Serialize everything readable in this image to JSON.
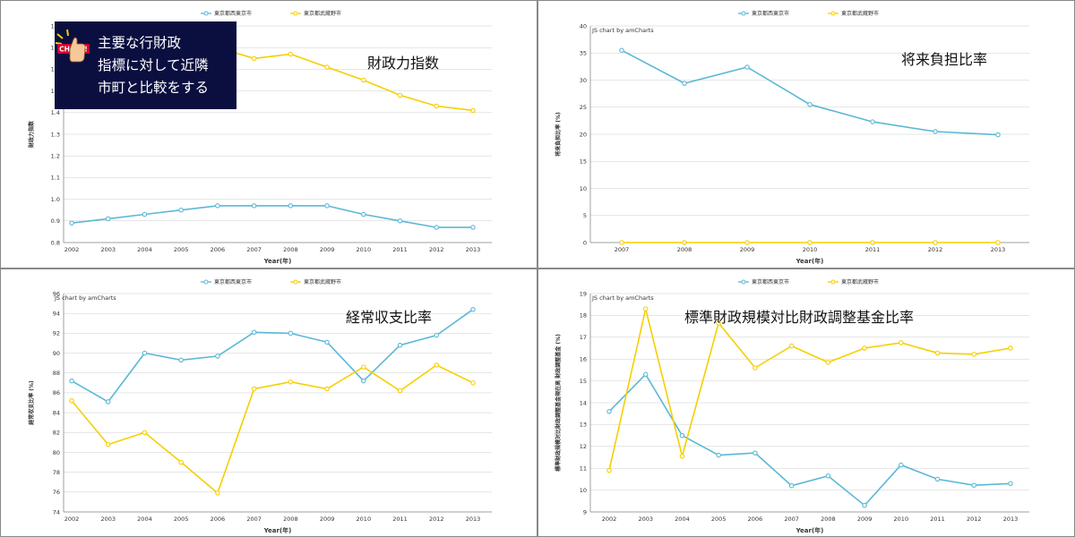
{
  "legend": {
    "series_a": "東京都西東京市",
    "series_b": "東京都武蔵野市"
  },
  "colors": {
    "series_a": "#5bb8d6",
    "series_b": "#f5cf00",
    "grid": "#cccccc",
    "axis": "#888888"
  },
  "callout": {
    "icon": "check-pointing-hand-icon",
    "badge_text": "CHECK!",
    "lines": [
      "主要な行財政",
      "指標に対して近隣",
      "市町と比較をする"
    ]
  },
  "chart_data": [
    {
      "type": "line",
      "title": "財政力指数",
      "credit": "",
      "xlabel": "Year(年)",
      "ylabel": "財政力指数",
      "x": [
        "2002",
        "2003",
        "2004",
        "2005",
        "2006",
        "2007",
        "2008",
        "2009",
        "2010",
        "2011",
        "2012",
        "2013"
      ],
      "yticks": [
        "0.8",
        "0.9",
        "1.0",
        "1.1",
        "1.2",
        "1.3",
        "1.4",
        "1.5",
        "1.6",
        "1.7",
        "1.8"
      ],
      "ylim": [
        0.8,
        1.8
      ],
      "series": [
        {
          "name": "東京都西東京市",
          "values": [
            0.89,
            0.91,
            0.93,
            0.95,
            0.97,
            0.97,
            0.97,
            0.97,
            0.93,
            0.9,
            0.87,
            0.87
          ]
        },
        {
          "name": "東京都武蔵野市",
          "values": [
            null,
            null,
            null,
            null,
            1.7,
            1.65,
            1.67,
            1.61,
            1.55,
            1.48,
            1.43,
            1.41
          ]
        }
      ]
    },
    {
      "type": "line",
      "title": "将来負担比率",
      "credit": "JS chart by amCharts",
      "xlabel": "Year(年)",
      "ylabel": "将来負担比率 (%)",
      "x": [
        "2007",
        "2008",
        "2009",
        "2010",
        "2011",
        "2012",
        "2013"
      ],
      "yticks": [
        "0",
        "5",
        "10",
        "15",
        "20",
        "25",
        "30",
        "35",
        "40"
      ],
      "ylim": [
        0,
        40
      ],
      "series": [
        {
          "name": "東京都西東京市",
          "values": [
            35.5,
            29.4,
            32.4,
            25.5,
            22.3,
            20.5,
            19.9
          ]
        },
        {
          "name": "東京都武蔵野市",
          "values": [
            0,
            0,
            0,
            0,
            0,
            0,
            0
          ]
        }
      ]
    },
    {
      "type": "line",
      "title": "経常収支比率",
      "credit": "JS chart by amCharts",
      "xlabel": "Year(年)",
      "ylabel": "経常収支比率 (%)",
      "x": [
        "2002",
        "2003",
        "2004",
        "2005",
        "2006",
        "2007",
        "2008",
        "2009",
        "2010",
        "2011",
        "2012",
        "2013"
      ],
      "yticks": [
        "74",
        "76",
        "78",
        "80",
        "82",
        "84",
        "86",
        "88",
        "90",
        "92",
        "94",
        "96"
      ],
      "ylim": [
        74,
        96
      ],
      "series": [
        {
          "name": "東京都西東京市",
          "values": [
            87.2,
            85.1,
            90.0,
            89.3,
            89.7,
            92.1,
            92.0,
            91.1,
            87.2,
            90.8,
            91.8,
            94.4
          ]
        },
        {
          "name": "東京都武蔵野市",
          "values": [
            85.2,
            80.8,
            82.0,
            79.0,
            75.9,
            86.4,
            87.1,
            86.4,
            88.6,
            86.2,
            88.8,
            87.0
          ]
        }
      ]
    },
    {
      "type": "line",
      "title": "標準財政規模対比財政調整基金比率",
      "credit": "JS chart by amCharts",
      "xlabel": "Year(年)",
      "ylabel": "標準財政規模対比財政調整基金現在高 財政調整基金 (%)",
      "x": [
        "2002",
        "2003",
        "2004",
        "2005",
        "2006",
        "2007",
        "2008",
        "2009",
        "2010",
        "2011",
        "2012",
        "2013"
      ],
      "yticks": [
        "9",
        "10",
        "11",
        "12",
        "13",
        "14",
        "15",
        "16",
        "17",
        "18",
        "19"
      ],
      "ylim": [
        9,
        19
      ],
      "series": [
        {
          "name": "東京都西東京市",
          "values": [
            13.6,
            15.3,
            12.5,
            11.6,
            11.7,
            10.2,
            10.65,
            9.3,
            11.15,
            10.5,
            10.22,
            10.3
          ]
        },
        {
          "name": "東京都武蔵野市",
          "values": [
            10.9,
            18.3,
            11.55,
            17.65,
            15.6,
            16.6,
            15.85,
            16.5,
            16.75,
            16.28,
            16.22,
            16.5
          ]
        }
      ]
    }
  ]
}
